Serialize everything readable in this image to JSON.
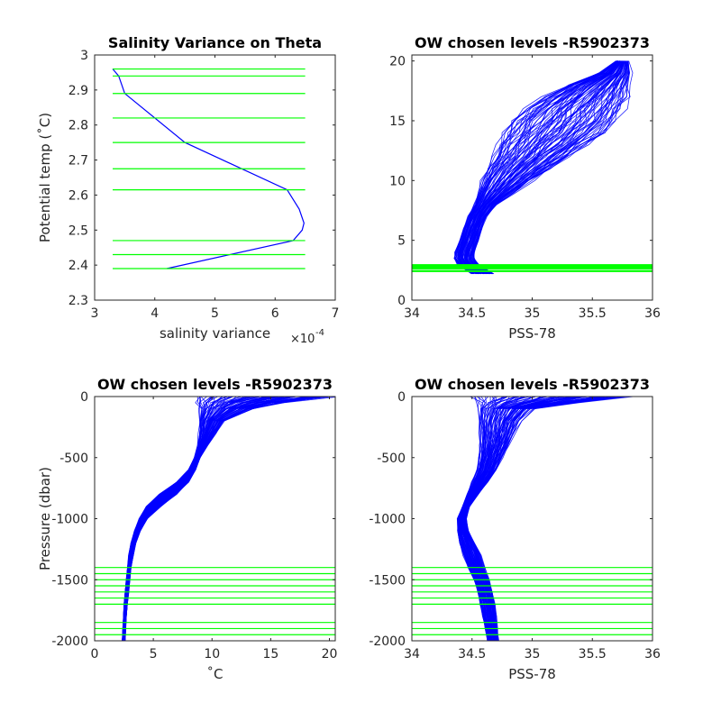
{
  "colors": {
    "profile": "#0000ff",
    "levels": "#00ff00",
    "axes": "#262626",
    "background": "#ffffff"
  },
  "chart_data": [
    {
      "type": "line",
      "title": "Salinity Variance on Theta",
      "xlabel": "salinity variance",
      "x_exponent_label": "×10",
      "x_exponent_sup": "-4",
      "ylabel": "Potential temp (˚C)",
      "xlim": [
        3,
        7
      ],
      "ylim": [
        2.3,
        3
      ],
      "xticks": [
        "3",
        "4",
        "5",
        "6",
        "7"
      ],
      "yticks": [
        "2.3",
        "2.4",
        "2.5",
        "2.6",
        "2.7",
        "2.8",
        "2.9",
        "3"
      ],
      "grid": false,
      "series": [
        {
          "x": [
            4.2,
            6.3,
            6.45,
            6.48,
            6.4,
            6.2,
            4.5,
            3.5,
            3.4,
            3.3
          ],
          "y": [
            2.39,
            2.47,
            2.5,
            2.52,
            2.56,
            2.615,
            2.75,
            2.89,
            2.94,
            2.96
          ]
        }
      ],
      "level_lines": {
        "y": [
          2.39,
          2.43,
          2.47,
          2.615,
          2.675,
          2.75,
          2.82,
          2.89,
          2.94,
          2.96
        ],
        "x_range": [
          3.3,
          6.5
        ]
      }
    },
    {
      "type": "line",
      "title": "OW chosen levels -R5902373",
      "xlabel": "PSS-78",
      "ylabel": "",
      "xlim": [
        34,
        36
      ],
      "ylim": [
        0,
        20.5
      ],
      "xticks": [
        "34",
        "34.5",
        "35",
        "35.5",
        "36"
      ],
      "yticks": [
        "0",
        "5",
        "10",
        "15",
        "20"
      ],
      "grid": false,
      "profile_envelope": {
        "y": [
          2.2,
          3,
          3.5,
          4,
          5,
          6,
          7,
          8,
          9,
          10,
          11,
          12,
          13,
          14,
          15,
          16,
          17,
          18,
          19,
          20
        ],
        "x_min": [
          34.5,
          34.38,
          34.35,
          34.36,
          34.4,
          34.43,
          34.47,
          34.52,
          34.55,
          34.58,
          34.62,
          34.68,
          34.72,
          34.78,
          34.85,
          34.95,
          35.1,
          35.3,
          35.55,
          35.7
        ],
        "x_max": [
          34.68,
          34.55,
          34.52,
          34.52,
          34.55,
          34.58,
          34.62,
          34.7,
          34.85,
          35.0,
          35.15,
          35.3,
          35.45,
          35.6,
          35.7,
          35.75,
          35.8,
          35.8,
          35.82,
          35.8
        ]
      },
      "level_lines": {
        "y": [
          2.39,
          2.43,
          2.47,
          2.615,
          2.675,
          2.75,
          2.82,
          2.89,
          2.94,
          2.96
        ],
        "x_range": [
          34,
          36
        ]
      }
    },
    {
      "type": "line",
      "title": "OW chosen levels -R5902373",
      "xlabel": "˚C",
      "ylabel": "Pressure (dbar)",
      "xlim": [
        0,
        20.5
      ],
      "ylim": [
        -2000,
        0
      ],
      "xticks": [
        "0",
        "5",
        "10",
        "15",
        "20"
      ],
      "yticks": [
        "-2000",
        "-1500",
        "-1000",
        "-500",
        "0"
      ],
      "grid": false,
      "profile_envelope": {
        "y": [
          0,
          -50,
          -100,
          -200,
          -300,
          -400,
          -500,
          -600,
          -700,
          -800,
          -900,
          -1000,
          -1100,
          -1200,
          -1300,
          -1400,
          -1500,
          -1600,
          -1700,
          -1800,
          -1900,
          -2000
        ],
        "x_min": [
          8.8,
          8.8,
          8.9,
          8.9,
          8.9,
          8.8,
          8.5,
          8.0,
          7.0,
          5.5,
          4.4,
          3.8,
          3.4,
          3.1,
          2.9,
          2.8,
          2.7,
          2.6,
          2.5,
          2.45,
          2.4,
          2.35
        ],
        "x_max": [
          20.3,
          16,
          13.5,
          11.0,
          10.3,
          9.6,
          9.0,
          8.6,
          8.0,
          7.0,
          5.6,
          4.5,
          3.9,
          3.5,
          3.3,
          3.1,
          3.0,
          2.9,
          2.8,
          2.7,
          2.65,
          2.6
        ]
      },
      "level_lines": {
        "y": [
          -1400,
          -1450,
          -1500,
          -1550,
          -1600,
          -1650,
          -1700,
          -1850,
          -1900,
          -1950
        ],
        "x_range": [
          0,
          20.5
        ]
      }
    },
    {
      "type": "line",
      "title": "OW chosen levels -R5902373",
      "xlabel": "PSS-78",
      "ylabel": "",
      "xlim": [
        34,
        36
      ],
      "ylim": [
        -2000,
        0
      ],
      "xticks": [
        "34",
        "34.5",
        "35",
        "35.5",
        "36"
      ],
      "yticks": [
        "-2000",
        "-1500",
        "-1000",
        "-500",
        "0"
      ],
      "grid": false,
      "profile_envelope": {
        "y": [
          0,
          -50,
          -100,
          -200,
          -300,
          -400,
          -500,
          -600,
          -700,
          -800,
          -900,
          -1000,
          -1100,
          -1200,
          -1300,
          -1400,
          -1500,
          -1600,
          -1700,
          -1800,
          -1900,
          -2000
        ],
        "x_min": [
          34.55,
          34.55,
          34.56,
          34.56,
          34.57,
          34.57,
          34.56,
          34.54,
          34.5,
          34.46,
          34.42,
          34.38,
          34.38,
          34.4,
          34.43,
          34.47,
          34.52,
          34.55,
          34.57,
          34.59,
          34.61,
          34.63
        ],
        "x_max": [
          35.8,
          35.4,
          35.0,
          34.9,
          34.85,
          34.8,
          34.75,
          34.7,
          34.63,
          34.55,
          34.48,
          34.45,
          34.47,
          34.52,
          34.57,
          34.6,
          34.64,
          34.67,
          34.69,
          34.7,
          34.71,
          34.72
        ]
      },
      "level_lines": {
        "y": [
          -1400,
          -1450,
          -1500,
          -1550,
          -1600,
          -1650,
          -1700,
          -1850,
          -1900,
          -1950
        ],
        "x_range": [
          34,
          36
        ]
      }
    }
  ]
}
